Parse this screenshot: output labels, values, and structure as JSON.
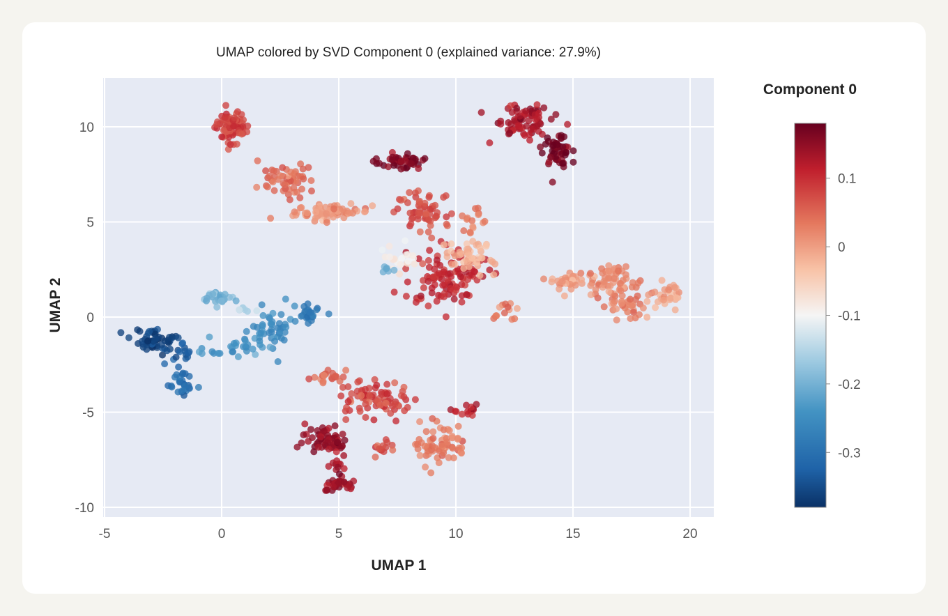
{
  "chart_data": {
    "type": "scatter",
    "title": "UMAP colored by SVD Component 0 (explained variance: 27.9%)",
    "xlabel": "UMAP 1",
    "ylabel": "UMAP 2",
    "xlim": [
      -5,
      21
    ],
    "ylim": [
      -10.5,
      12.5
    ],
    "xticks": [
      -5,
      0,
      5,
      10,
      15,
      20
    ],
    "xtick_labels": [
      "-5",
      "0",
      "5",
      "10",
      "15",
      "20"
    ],
    "yticks": [
      -10,
      -5,
      0,
      5,
      10
    ],
    "ytick_labels": [
      "-10",
      "-5",
      "0",
      "5",
      "10"
    ],
    "grid": true,
    "colorbar": {
      "title": "Component 0",
      "colormap": "RdBu_r",
      "range": [
        -0.38,
        0.18
      ],
      "ticks": [
        0.1,
        0,
        -0.1,
        -0.2,
        -0.3
      ],
      "tick_labels": [
        "0.1",
        "0",
        "-0.1",
        "-0.2",
        "-0.3"
      ]
    },
    "clusters": [
      {
        "name": "top-left-arm-head",
        "x": 0.4,
        "y": 10.0,
        "sx": 0.35,
        "sy": 0.45,
        "n": 70,
        "value": 0.08
      },
      {
        "name": "top-left-arm-mid",
        "x": 2.8,
        "y": 7.2,
        "sx": 0.6,
        "sy": 0.45,
        "n": 55,
        "value": 0.05
      },
      {
        "name": "top-left-arm-tail",
        "x": 4.8,
        "y": 5.5,
        "sx": 0.8,
        "sy": 0.2,
        "n": 70,
        "value": 0.01
      },
      {
        "name": "top-center-cluster",
        "x": 7.6,
        "y": 8.2,
        "sx": 0.55,
        "sy": 0.2,
        "n": 45,
        "value": 0.16
      },
      {
        "name": "top-right-cluster-a",
        "x": 12.8,
        "y": 10.3,
        "sx": 0.6,
        "sy": 0.45,
        "n": 75,
        "value": 0.13
      },
      {
        "name": "top-right-cluster-b",
        "x": 14.3,
        "y": 8.9,
        "sx": 0.3,
        "sy": 0.45,
        "n": 50,
        "value": 0.17
      },
      {
        "name": "center-cluster-upper",
        "x": 8.6,
        "y": 5.5,
        "sx": 0.6,
        "sy": 0.6,
        "n": 60,
        "value": 0.07
      },
      {
        "name": "center-cluster-core",
        "x": 9.6,
        "y": 2.2,
        "sx": 0.9,
        "sy": 0.75,
        "n": 110,
        "value": 0.1
      },
      {
        "name": "center-cluster-light",
        "x": 10.6,
        "y": 3.2,
        "sx": 0.5,
        "sy": 0.45,
        "n": 45,
        "value": -0.02
      },
      {
        "name": "center-cluster-pale",
        "x": 7.5,
        "y": 3.1,
        "sx": 0.4,
        "sy": 0.4,
        "n": 20,
        "value": -0.09
      },
      {
        "name": "center-cluster-blue",
        "x": 7.1,
        "y": 2.5,
        "sx": 0.25,
        "sy": 0.2,
        "n": 6,
        "value": -0.2
      },
      {
        "name": "center-right-tail",
        "x": 12.0,
        "y": 0.3,
        "sx": 0.3,
        "sy": 0.3,
        "n": 14,
        "value": 0.03
      },
      {
        "name": "center-upper-right-bit",
        "x": 10.8,
        "y": 5.3,
        "sx": 0.3,
        "sy": 0.4,
        "n": 15,
        "value": 0.03
      },
      {
        "name": "right-cluster-1",
        "x": 14.8,
        "y": 1.9,
        "sx": 0.35,
        "sy": 0.25,
        "n": 35,
        "value": 0.0
      },
      {
        "name": "right-cluster-2",
        "x": 16.8,
        "y": 1.8,
        "sx": 0.6,
        "sy": 0.5,
        "n": 65,
        "value": 0.02
      },
      {
        "name": "right-cluster-3",
        "x": 17.2,
        "y": 0.5,
        "sx": 0.4,
        "sy": 0.4,
        "n": 30,
        "value": 0.03
      },
      {
        "name": "right-cluster-4",
        "x": 19.0,
        "y": 1.1,
        "sx": 0.35,
        "sy": 0.3,
        "n": 30,
        "value": -0.01
      },
      {
        "name": "left-pale-blue",
        "x": -0.2,
        "y": 1.0,
        "sx": 0.3,
        "sy": 0.2,
        "n": 30,
        "value": -0.2
      },
      {
        "name": "left-pale-tail",
        "x": 1.0,
        "y": 0.4,
        "sx": 0.3,
        "sy": 0.1,
        "n": 6,
        "value": -0.15
      },
      {
        "name": "left-blue-branch",
        "x": 2.3,
        "y": -0.8,
        "sx": 0.5,
        "sy": 0.6,
        "n": 45,
        "value": -0.26
      },
      {
        "name": "left-blue-cluster",
        "x": 3.8,
        "y": 0.1,
        "sx": 0.3,
        "sy": 0.2,
        "n": 25,
        "value": -0.29
      },
      {
        "name": "left-mid-blue",
        "x": 0.5,
        "y": -1.6,
        "sx": 0.6,
        "sy": 0.25,
        "n": 28,
        "value": -0.24
      },
      {
        "name": "far-left-dark",
        "x": -2.8,
        "y": -1.2,
        "sx": 0.5,
        "sy": 0.3,
        "n": 55,
        "value": -0.36
      },
      {
        "name": "far-left-tail",
        "x": -1.8,
        "y": -2.0,
        "sx": 0.25,
        "sy": 0.3,
        "n": 14,
        "value": -0.34
      },
      {
        "name": "left-lower-blue",
        "x": -1.7,
        "y": -3.6,
        "sx": 0.25,
        "sy": 0.35,
        "n": 28,
        "value": -0.31
      },
      {
        "name": "bottom-cluster-top",
        "x": 4.5,
        "y": -3.1,
        "sx": 0.4,
        "sy": 0.15,
        "n": 20,
        "value": 0.04
      },
      {
        "name": "bottom-cluster-mid",
        "x": 6.6,
        "y": -4.3,
        "sx": 0.8,
        "sy": 0.45,
        "n": 80,
        "value": 0.08
      },
      {
        "name": "bottom-cluster-left",
        "x": 4.5,
        "y": -6.4,
        "sx": 0.5,
        "sy": 0.4,
        "n": 55,
        "value": 0.15
      },
      {
        "name": "bottom-cluster-stem",
        "x": 5.0,
        "y": -7.8,
        "sx": 0.2,
        "sy": 0.4,
        "n": 14,
        "value": 0.13
      },
      {
        "name": "bottom-cluster-tip",
        "x": 5.0,
        "y": -8.8,
        "sx": 0.3,
        "sy": 0.2,
        "n": 30,
        "value": 0.14
      },
      {
        "name": "bottom-cluster-right",
        "x": 9.3,
        "y": -6.7,
        "sx": 0.6,
        "sy": 0.55,
        "n": 65,
        "value": 0.03
      },
      {
        "name": "bottom-cluster-far-right",
        "x": 10.5,
        "y": -4.9,
        "sx": 0.3,
        "sy": 0.2,
        "n": 14,
        "value": 0.12
      },
      {
        "name": "bottom-cluster-small",
        "x": 6.8,
        "y": -6.8,
        "sx": 0.3,
        "sy": 0.2,
        "n": 14,
        "value": 0.07
      }
    ]
  }
}
